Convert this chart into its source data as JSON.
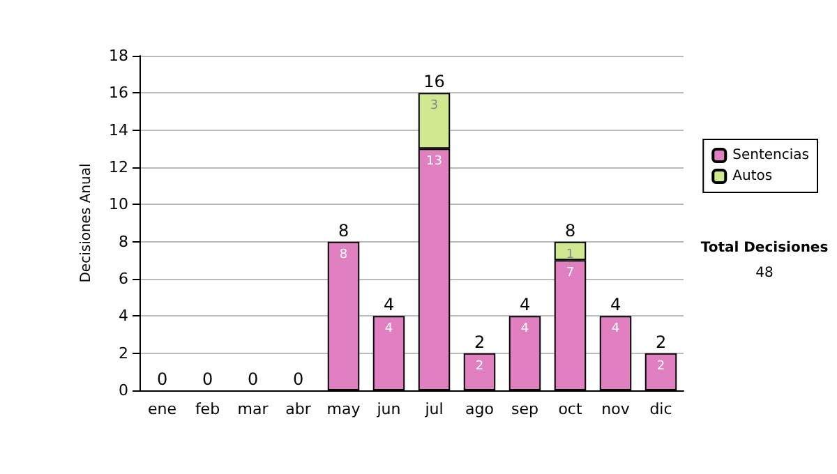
{
  "chart_data": {
    "type": "bar",
    "stacked": true,
    "ylabel": "Decisiones Anual",
    "categories": [
      "ene",
      "feb",
      "mar",
      "abr",
      "may",
      "jun",
      "jul",
      "ago",
      "sep",
      "oct",
      "nov",
      "dic"
    ],
    "series": [
      {
        "name": "Sentencias",
        "color": "#e080c0",
        "values": [
          0,
          0,
          0,
          0,
          8,
          4,
          13,
          2,
          4,
          7,
          4,
          2
        ],
        "value_labels": [
          null,
          null,
          null,
          null,
          "8",
          "4",
          "13",
          "2",
          "4",
          "7",
          "4",
          "2"
        ]
      },
      {
        "name": "Autos",
        "color": "#d0e890",
        "values": [
          0,
          0,
          0,
          0,
          0,
          0,
          3,
          0,
          0,
          1,
          0,
          0
        ],
        "value_labels": [
          null,
          null,
          null,
          null,
          null,
          null,
          "3",
          null,
          null,
          "1",
          null,
          null
        ]
      }
    ],
    "totals": [
      "0",
      "0",
      "0",
      "0",
      "8",
      "4",
      "16",
      "2",
      "4",
      "8",
      "4",
      "2"
    ],
    "ylim": [
      0,
      18
    ],
    "yticks": [
      0,
      2,
      4,
      6,
      8,
      10,
      12,
      14,
      16,
      18
    ],
    "grid": "y",
    "legend": "right",
    "annotations": [
      "Total Decisiones",
      "48"
    ]
  }
}
